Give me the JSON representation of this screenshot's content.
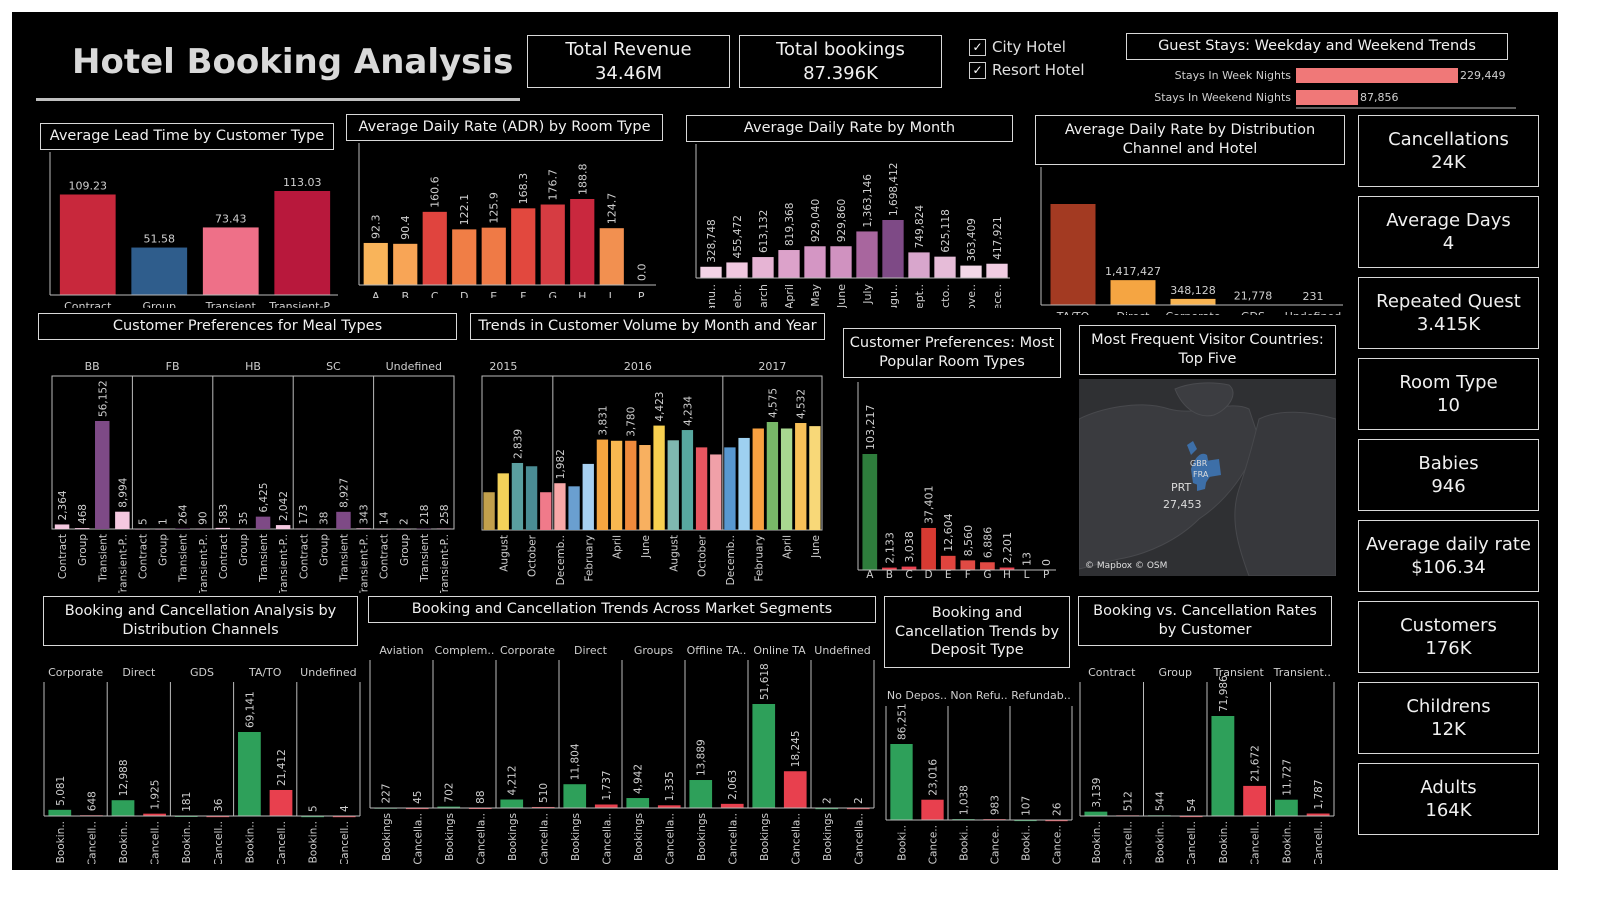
{
  "header": {
    "title": "Hotel Booking Analysis"
  },
  "kpis": {
    "revenue": {
      "label": "Total Revenue",
      "value": "34.46M"
    },
    "bookings": {
      "label": "Total bookings",
      "value": "87.396K"
    }
  },
  "filters": [
    {
      "label": "City Hotel",
      "checked": "✓"
    },
    {
      "label": "Resort Hotel",
      "checked": "✓"
    }
  ],
  "side_kpis": [
    {
      "label": "Cancellations",
      "value": "24K"
    },
    {
      "label": "Average Days",
      "value": "4"
    },
    {
      "label": "Repeated Quest",
      "value": "3.415K"
    },
    {
      "label": "Room Type",
      "value": "10"
    },
    {
      "label": "Babies",
      "value": "946"
    },
    {
      "label": "Average daily rate",
      "value": "$106.34"
    },
    {
      "label": "Customers",
      "value": "176K"
    },
    {
      "label": "Childrens",
      "value": "12K"
    },
    {
      "label": "Adults",
      "value": "164K"
    }
  ],
  "map": {
    "title": "Most Frequent Visitor Countries: Top Five",
    "label_country": "PRT",
    "label_value": "27,453",
    "label_small1": "GBR",
    "label_small2": "FRA",
    "attribution": "© Mapbox © OSM"
  },
  "colors": {
    "green": "#2ea05a",
    "red": "#e8404e"
  },
  "chart_data": [
    {
      "id": "guest_stays",
      "type": "bar",
      "orientation": "horizontal",
      "title": "Guest Stays: Weekday and Weekend Trends",
      "categories": [
        "Stays In Week Nights",
        "Stays In Weekend Nights"
      ],
      "values": [
        229449,
        87856
      ],
      "labels": [
        "229,449",
        "87,856"
      ]
    },
    {
      "id": "lead_time",
      "type": "bar",
      "title": "Average Lead Time by Customer Type",
      "categories": [
        "Contract",
        "Group",
        "Transient",
        "Transient-P.."
      ],
      "values": [
        109.23,
        51.58,
        73.43,
        113.03
      ],
      "labels": [
        "109.23",
        "51.58",
        "73.43",
        "113.03"
      ],
      "colors": [
        "#c8283c",
        "#2f5d8c",
        "#ee7088",
        "#b8183c"
      ]
    },
    {
      "id": "adr_room",
      "type": "bar",
      "title": "Average Daily Rate (ADR) by Room Type",
      "categories": [
        "A",
        "B",
        "C",
        "D",
        "E",
        "F",
        "G",
        "H",
        "L",
        "P"
      ],
      "values": [
        92.3,
        90.4,
        160.6,
        122.1,
        125.9,
        168.3,
        176.7,
        188.8,
        124.7,
        0.0
      ],
      "labels": [
        "92.3",
        "90.4",
        "160.6",
        "122.1",
        "125.9",
        "168.3",
        "176.7",
        "188.8",
        "124.7",
        "0.0"
      ],
      "colors": [
        "#f9b45a",
        "#f8a556",
        "#e0443e",
        "#f07e46",
        "#ef7a46",
        "#e2483e",
        "#d63c42",
        "#c9283e",
        "#f29050",
        "#f29050"
      ]
    },
    {
      "id": "adr_month",
      "type": "bar",
      "title": "Average Daily Rate by Month",
      "categories": [
        "Janu..",
        "Febr..",
        "March",
        "April",
        "May",
        "June",
        "July",
        "Augu..",
        "Sept..",
        "Octo..",
        "Nove..",
        "Dece.."
      ],
      "values": [
        328748,
        455472,
        613132,
        819368,
        929040,
        929860,
        1363146,
        1698412,
        749824,
        625118,
        363409,
        417921
      ],
      "labels": [
        "328,748",
        "455,472",
        "613,132",
        "819,368",
        "929,040",
        "929,860",
        "1,363,146",
        "1,698,412",
        "749,824",
        "625,118",
        "363,409",
        "417,921"
      ],
      "colors": [
        "#f3d3e6",
        "#f0c8e0",
        "#e6b4d4",
        "#dca2ca",
        "#d496c4",
        "#d092c0",
        "#a8669e",
        "#7e4a86",
        "#d8a6cc",
        "#e6bcd8",
        "#f3d8e8",
        "#f0cce2"
      ]
    },
    {
      "id": "adr_channel",
      "type": "bar",
      "title": "Average Daily Rate by Distribution Channel and Hotel",
      "categories": [
        "TA/TO",
        "Direct",
        "Corporate",
        "GDS",
        "Undefined"
      ],
      "values": [
        5760000,
        1417427,
        348128,
        21778,
        231
      ],
      "labels": [
        "",
        "1,417,427",
        "348,128",
        "21,778",
        "231"
      ],
      "colors": [
        "#a33a22",
        "#f5a542",
        "#f8b452",
        "#f8c060",
        "#f8c060"
      ]
    },
    {
      "id": "meal_types",
      "type": "bar",
      "title": "Customer Preferences for Meal Types",
      "groups": [
        "BB",
        "FB",
        "HB",
        "SC",
        "Undefined"
      ],
      "subcategories": [
        "Contract",
        "Group",
        "Transient",
        "Transient-P.."
      ],
      "values": [
        [
          2364,
          468,
          56152,
          8994
        ],
        [
          5,
          1,
          264,
          90
        ],
        [
          583,
          35,
          6425,
          2042
        ],
        [
          173,
          38,
          8927,
          343
        ],
        [
          14,
          2,
          218,
          258
        ]
      ],
      "labels": [
        [
          "2,364",
          "468",
          "56,152",
          "8,994"
        ],
        [
          "5",
          "1",
          "264",
          "90"
        ],
        [
          "583",
          "35",
          "6,425",
          "2,042"
        ],
        [
          "173",
          "38",
          "8,927",
          "343"
        ],
        [
          "14",
          "2",
          "218",
          "258"
        ]
      ],
      "colors": [
        "#f4c8e0",
        "#f4c8e0",
        "#7e4a86",
        "#f4c8e0"
      ]
    },
    {
      "id": "customer_volume",
      "type": "bar",
      "title": "Trends in Customer Volume by Month and Year",
      "years": [
        "2015",
        "2016",
        "2017"
      ],
      "tick_labels": [
        "August",
        "October",
        "Decemb..",
        "February",
        "April",
        "June",
        "August",
        "October",
        "Decemb..",
        "February",
        "April",
        "June",
        "August"
      ],
      "values": [
        1600,
        2400,
        2839,
        2700,
        1600,
        1982,
        1850,
        2800,
        3831,
        3780,
        3780,
        3600,
        4423,
        3800,
        4234,
        3500,
        3200,
        3500,
        3900,
        4300,
        4575,
        4300,
        4532,
        4400
      ],
      "labels": [
        "",
        "",
        "2,839",
        "",
        "",
        "1,982",
        "",
        "",
        "3,831",
        "",
        "3,780",
        "",
        "4,423",
        "",
        "4,234",
        "",
        "",
        "",
        "",
        "",
        "4,575",
        "",
        "4,532",
        ""
      ],
      "colors": [
        "#c2a04c",
        "#f3d25a",
        "#5a9fa0",
        "#4a8c94",
        "#f07a8a",
        "#f8a8a8",
        "#6a9fd0",
        "#a8d0f0",
        "#f5a540",
        "#f8b850",
        "#ef8a3c",
        "#f8b060",
        "#f8d050",
        "#7fb8b0",
        "#58a8a0",
        "#e85660",
        "#f0a0a8",
        "#5898d0",
        "#9ed0f0",
        "#f8a040",
        "#78b868",
        "#a8d890",
        "#f8c058",
        "#f8d878"
      ]
    },
    {
      "id": "room_popularity",
      "type": "bar",
      "title": "Customer Preferences: Most Popular Room Types",
      "categories": [
        "A",
        "B",
        "C",
        "D",
        "E",
        "F",
        "G",
        "H",
        "L",
        "P"
      ],
      "values": [
        103217,
        2133,
        3038,
        37401,
        12604,
        8560,
        6886,
        2201,
        13,
        0
      ],
      "labels": [
        "103,217",
        "2,133",
        "3,038",
        "37,401",
        "12,604",
        "8,560",
        "6,886",
        "2,201",
        "13",
        "0"
      ],
      "colors": [
        "#2e7d3c",
        "#e8404e",
        "#e8404e",
        "#d73a32",
        "#e0443e",
        "#e04a44",
        "#e04a44",
        "#e8404e",
        "#e8404e",
        "#e8404e"
      ]
    },
    {
      "id": "dist_channels",
      "type": "bar",
      "title": "Booking and Cancellation Analysis by Distribution Channels",
      "groups": [
        "Corporate",
        "Direct",
        "GDS",
        "TA/TO",
        "Undefined"
      ],
      "subcategories": [
        "Bookin..",
        "Cancell.."
      ],
      "values": [
        [
          5081,
          648
        ],
        [
          12988,
          1925
        ],
        [
          181,
          36
        ],
        [
          69141,
          21412
        ],
        [
          5,
          4
        ]
      ],
      "labels": [
        [
          "5,081",
          "648"
        ],
        [
          "12,988",
          "1,925"
        ],
        [
          "181",
          "36"
        ],
        [
          "69,141",
          "21,412"
        ],
        [
          "5",
          "4"
        ]
      ]
    },
    {
      "id": "market_segments",
      "type": "bar",
      "title": "Booking and Cancellation Trends Across Market Segments",
      "groups": [
        "Aviation",
        "Complem..",
        "Corporate",
        "Direct",
        "Groups",
        "Offline TA..",
        "Online TA",
        "Undefined"
      ],
      "subcategories": [
        "Bookings",
        "Cancella.."
      ],
      "values": [
        [
          227,
          45
        ],
        [
          702,
          88
        ],
        [
          4212,
          510
        ],
        [
          11804,
          1737
        ],
        [
          4942,
          1335
        ],
        [
          13889,
          2063
        ],
        [
          51618,
          18245
        ],
        [
          2,
          2
        ]
      ],
      "labels": [
        [
          "227",
          "45"
        ],
        [
          "702",
          "88"
        ],
        [
          "4,212",
          "510"
        ],
        [
          "11,804",
          "1,737"
        ],
        [
          "4,942",
          "1,335"
        ],
        [
          "13,889",
          "2,063"
        ],
        [
          "51,618",
          "18,245"
        ],
        [
          "2",
          "2"
        ]
      ]
    },
    {
      "id": "deposit_type",
      "type": "bar",
      "title": "Booking and Cancellation Trends by Deposit Type",
      "groups": [
        "No Depos..",
        "Non Refu..",
        "Refundab.."
      ],
      "subcategories": [
        "Booki..",
        "Cance.."
      ],
      "values": [
        [
          86251,
          23016
        ],
        [
          1038,
          983
        ],
        [
          107,
          26
        ]
      ],
      "labels": [
        [
          "86,251",
          "23,016"
        ],
        [
          "1,038",
          "983"
        ],
        [
          "107",
          "26"
        ]
      ]
    },
    {
      "id": "customer_rates",
      "type": "bar",
      "title": "Booking vs. Cancellation Rates by Customer",
      "groups": [
        "Contract",
        "Group",
        "Transient",
        "Transient.."
      ],
      "subcategories": [
        "Bookin..",
        "Cancell.."
      ],
      "values": [
        [
          3139,
          512
        ],
        [
          544,
          54
        ],
        [
          71986,
          21672
        ],
        [
          11727,
          1787
        ]
      ],
      "labels": [
        [
          "3,139",
          "512"
        ],
        [
          "544",
          "54"
        ],
        [
          "71,986",
          "21,672"
        ],
        [
          "11,727",
          "1,787"
        ]
      ]
    }
  ]
}
